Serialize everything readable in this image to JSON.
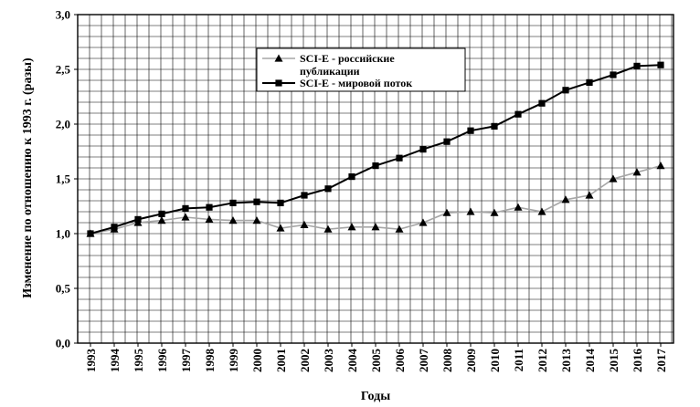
{
  "chart_data": {
    "type": "line",
    "xlabel": "Годы",
    "ylabel": "Изменение по отношению к 1993 г. (разы)",
    "ylim": [
      0,
      3
    ],
    "yticks": [
      "0,0",
      "0,5",
      "1,0",
      "1,5",
      "2,0",
      "2,5",
      "3,0"
    ],
    "yticks_values": [
      0,
      0.5,
      1.0,
      1.5,
      2.0,
      2.5,
      3.0
    ],
    "categories": [
      "1993",
      "1994",
      "1995",
      "1996",
      "1997",
      "1998",
      "1999",
      "2000",
      "2001",
      "2002",
      "2003",
      "2004",
      "2005",
      "2006",
      "2007",
      "2008",
      "2009",
      "2010",
      "2011",
      "2012",
      "2013",
      "2014",
      "2015",
      "2016",
      "2017"
    ],
    "grid": true,
    "legend_position": "top-center",
    "series": [
      {
        "name": "SCI-E - российские публикации",
        "legend_lines": [
          "SCI-E - российские",
          "публикации"
        ],
        "marker": "triangle",
        "color": "#a6a6a6",
        "values": [
          1.0,
          1.04,
          1.1,
          1.12,
          1.15,
          1.13,
          1.12,
          1.12,
          1.05,
          1.08,
          1.04,
          1.06,
          1.06,
          1.04,
          1.1,
          1.19,
          1.2,
          1.19,
          1.24,
          1.2,
          1.31,
          1.35,
          1.5,
          1.56,
          1.62
        ]
      },
      {
        "name": "SCI-E - мировой поток",
        "legend_lines": [
          "SCI-E - мировой поток"
        ],
        "marker": "square",
        "color": "#000000",
        "values": [
          1.0,
          1.06,
          1.13,
          1.18,
          1.23,
          1.24,
          1.28,
          1.29,
          1.28,
          1.35,
          1.41,
          1.52,
          1.62,
          1.69,
          1.77,
          1.84,
          1.94,
          1.98,
          2.09,
          2.19,
          2.31,
          2.38,
          2.45,
          2.53,
          2.54
        ]
      }
    ]
  }
}
